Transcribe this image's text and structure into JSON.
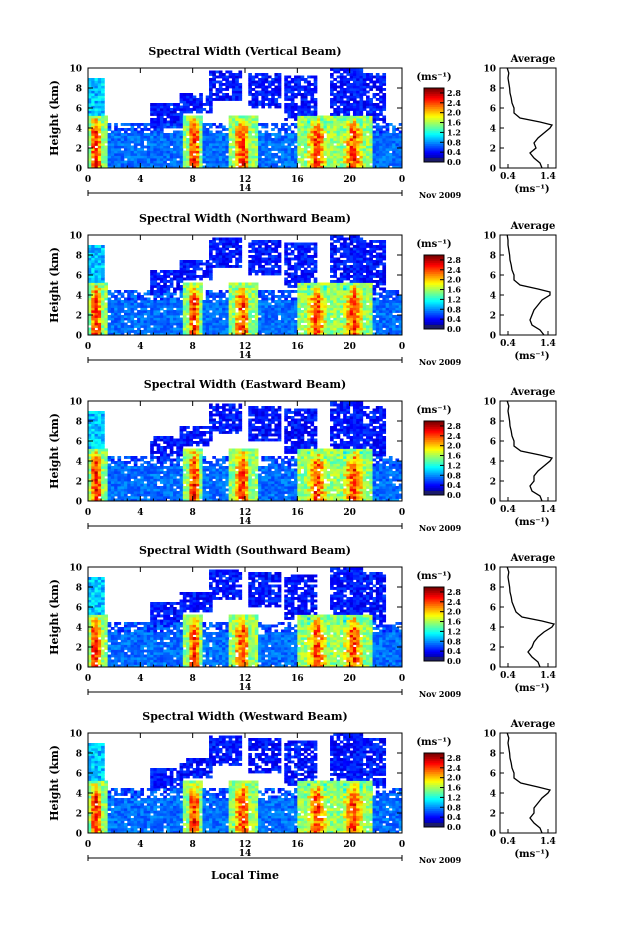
{
  "figure": {
    "xlabel": "Local Time",
    "date_label": "Nov 2009",
    "day_label": "14",
    "colorbar_unit": "(ms⁻¹)",
    "profile_title": "Average",
    "profile_xunit": "(ms⁻¹)",
    "ylabel": "Height (km)"
  },
  "chart_data": [
    {
      "type": "heatmap",
      "title": "Spectral Width (Vertical Beam)",
      "ylabel": "Height (km)",
      "xlabel": "Local Time",
      "x_ticks": [
        "0",
        "4",
        "8",
        "12",
        "16",
        "20",
        "0"
      ],
      "x_range": [
        0,
        24
      ],
      "y_ticks": [
        "0",
        "2",
        "4",
        "6",
        "8",
        "10"
      ],
      "y_range": [
        0,
        10
      ],
      "colorbar": {
        "label": "(ms⁻¹)",
        "ticks": [
          "2.8",
          "2.4",
          "2.0",
          "1.6",
          "1.2",
          "0.8",
          "0.4",
          "0.0"
        ],
        "range": [
          0,
          3.0
        ]
      },
      "profile": {
        "title": "Average",
        "x_ticks": [
          "0.4",
          "1.4"
        ],
        "x_range": [
          0.2,
          1.6
        ],
        "y_range": [
          0,
          10
        ],
        "heights": [
          0,
          0.5,
          1,
          1.5,
          2,
          2.5,
          3,
          3.5,
          4,
          4.3,
          4.6,
          5,
          5.5,
          6,
          6.5,
          7,
          7.5,
          8,
          8.5,
          9,
          9.5,
          10
        ],
        "values": [
          1.25,
          1.2,
          1.05,
          0.95,
          1.1,
          1.05,
          1.15,
          1.3,
          1.45,
          1.5,
          1.2,
          0.7,
          0.55,
          0.55,
          0.5,
          0.48,
          0.45,
          0.44,
          0.42,
          0.4,
          0.42,
          0.38
        ]
      }
    },
    {
      "type": "heatmap",
      "title": "Spectral Width (Northward Beam)",
      "ylabel": "Height (km)",
      "x_ticks": [
        "0",
        "4",
        "8",
        "12",
        "16",
        "20",
        "0"
      ],
      "x_range": [
        0,
        24
      ],
      "y_ticks": [
        "0",
        "2",
        "4",
        "6",
        "8",
        "10"
      ],
      "y_range": [
        0,
        10
      ],
      "colorbar": {
        "label": "(ms⁻¹)",
        "ticks": [
          "2.8",
          "2.4",
          "2.0",
          "1.6",
          "1.2",
          "0.8",
          "0.4",
          "0.0"
        ],
        "range": [
          0,
          3.0
        ]
      },
      "profile": {
        "title": "Average",
        "x_ticks": [
          "0.4",
          "1.4"
        ],
        "x_range": [
          0.2,
          1.6
        ],
        "y_range": [
          0,
          10
        ],
        "heights": [
          0,
          0.5,
          1,
          1.5,
          2,
          2.5,
          3,
          3.5,
          4,
          4.3,
          4.6,
          5,
          5.5,
          6,
          6.5,
          7,
          7.5,
          8,
          8.5,
          9,
          9.5,
          10
        ],
        "values": [
          1.3,
          1.2,
          1.0,
          0.95,
          1.0,
          1.05,
          1.15,
          1.25,
          1.45,
          1.45,
          1.15,
          0.7,
          0.55,
          0.55,
          0.5,
          0.48,
          0.45,
          0.44,
          0.42,
          0.4,
          0.4,
          0.38
        ]
      }
    },
    {
      "type": "heatmap",
      "title": "Spectral Width (Eastward Beam)",
      "ylabel": "Height (km)",
      "x_ticks": [
        "0",
        "4",
        "8",
        "12",
        "16",
        "20",
        "0"
      ],
      "x_range": [
        0,
        24
      ],
      "y_ticks": [
        "0",
        "2",
        "4",
        "6",
        "8",
        "10"
      ],
      "y_range": [
        0,
        10
      ],
      "colorbar": {
        "label": "(ms⁻¹)",
        "ticks": [
          "2.8",
          "2.4",
          "2.0",
          "1.6",
          "1.2",
          "0.8",
          "0.4",
          "0.0"
        ],
        "range": [
          0,
          3.0
        ]
      },
      "profile": {
        "title": "Average",
        "x_ticks": [
          "0.4",
          "1.4"
        ],
        "x_range": [
          0.2,
          1.6
        ],
        "y_range": [
          0,
          10
        ],
        "heights": [
          0,
          0.5,
          1,
          1.5,
          2,
          2.5,
          3,
          3.5,
          4,
          4.3,
          4.6,
          5,
          5.5,
          6,
          6.5,
          7,
          7.5,
          8,
          8.5,
          9,
          9.5,
          10
        ],
        "values": [
          1.25,
          1.2,
          1.0,
          0.95,
          1.05,
          1.05,
          1.15,
          1.3,
          1.45,
          1.5,
          1.2,
          0.72,
          0.55,
          0.55,
          0.5,
          0.48,
          0.45,
          0.44,
          0.42,
          0.4,
          0.42,
          0.38
        ]
      }
    },
    {
      "type": "heatmap",
      "title": "Spectral Width (Southward Beam)",
      "ylabel": "Height (km)",
      "x_ticks": [
        "0",
        "4",
        "8",
        "12",
        "16",
        "20",
        "0"
      ],
      "x_range": [
        0,
        24
      ],
      "y_ticks": [
        "0",
        "2",
        "4",
        "6",
        "8",
        "10"
      ],
      "y_range": [
        0,
        10
      ],
      "colorbar": {
        "label": "(ms⁻¹)",
        "ticks": [
          "2.8",
          "2.4",
          "2.0",
          "1.6",
          "1.2",
          "0.8",
          "0.4",
          "0.0"
        ],
        "range": [
          0,
          3.0
        ]
      },
      "profile": {
        "title": "Average",
        "x_ticks": [
          "0.4",
          "1.4"
        ],
        "x_range": [
          0.2,
          1.6
        ],
        "y_range": [
          0,
          10
        ],
        "heights": [
          0,
          0.5,
          1,
          1.5,
          2,
          2.5,
          3,
          3.5,
          4,
          4.3,
          4.6,
          5,
          5.5,
          6,
          6.5,
          7,
          7.5,
          8,
          8.5,
          9,
          9.5,
          10
        ],
        "values": [
          1.2,
          1.15,
          1.0,
          0.9,
          1.0,
          1.05,
          1.15,
          1.3,
          1.5,
          1.55,
          1.25,
          0.75,
          0.6,
          0.55,
          0.5,
          0.48,
          0.45,
          0.44,
          0.42,
          0.4,
          0.42,
          0.38
        ]
      }
    },
    {
      "type": "heatmap",
      "title": "Spectral Width (Westward Beam)",
      "ylabel": "Height (km)",
      "xlabel": "Local Time",
      "x_ticks": [
        "0",
        "4",
        "8",
        "12",
        "16",
        "20",
        "0"
      ],
      "x_range": [
        0,
        24
      ],
      "y_ticks": [
        "0",
        "2",
        "4",
        "6",
        "8",
        "10"
      ],
      "y_range": [
        0,
        10
      ],
      "colorbar": {
        "label": "(ms⁻¹)",
        "ticks": [
          "2.8",
          "2.4",
          "2.0",
          "1.6",
          "1.2",
          "0.8",
          "0.4",
          "0.0"
        ],
        "range": [
          0,
          3.0
        ]
      },
      "profile": {
        "title": "Average",
        "x_ticks": [
          "0.4",
          "1.4"
        ],
        "x_range": [
          0.2,
          1.6
        ],
        "y_range": [
          0,
          10
        ],
        "heights": [
          0,
          0.5,
          1,
          1.5,
          2,
          2.5,
          3,
          3.5,
          4,
          4.3,
          4.6,
          5,
          5.5,
          6,
          6.5,
          7,
          7.5,
          8,
          8.5,
          9,
          9.5,
          10
        ],
        "values": [
          1.25,
          1.2,
          1.05,
          0.95,
          1.05,
          1.05,
          1.15,
          1.25,
          1.4,
          1.45,
          1.15,
          0.72,
          0.55,
          0.55,
          0.5,
          0.48,
          0.45,
          0.44,
          0.42,
          0.4,
          0.42,
          0.38
        ]
      }
    }
  ]
}
